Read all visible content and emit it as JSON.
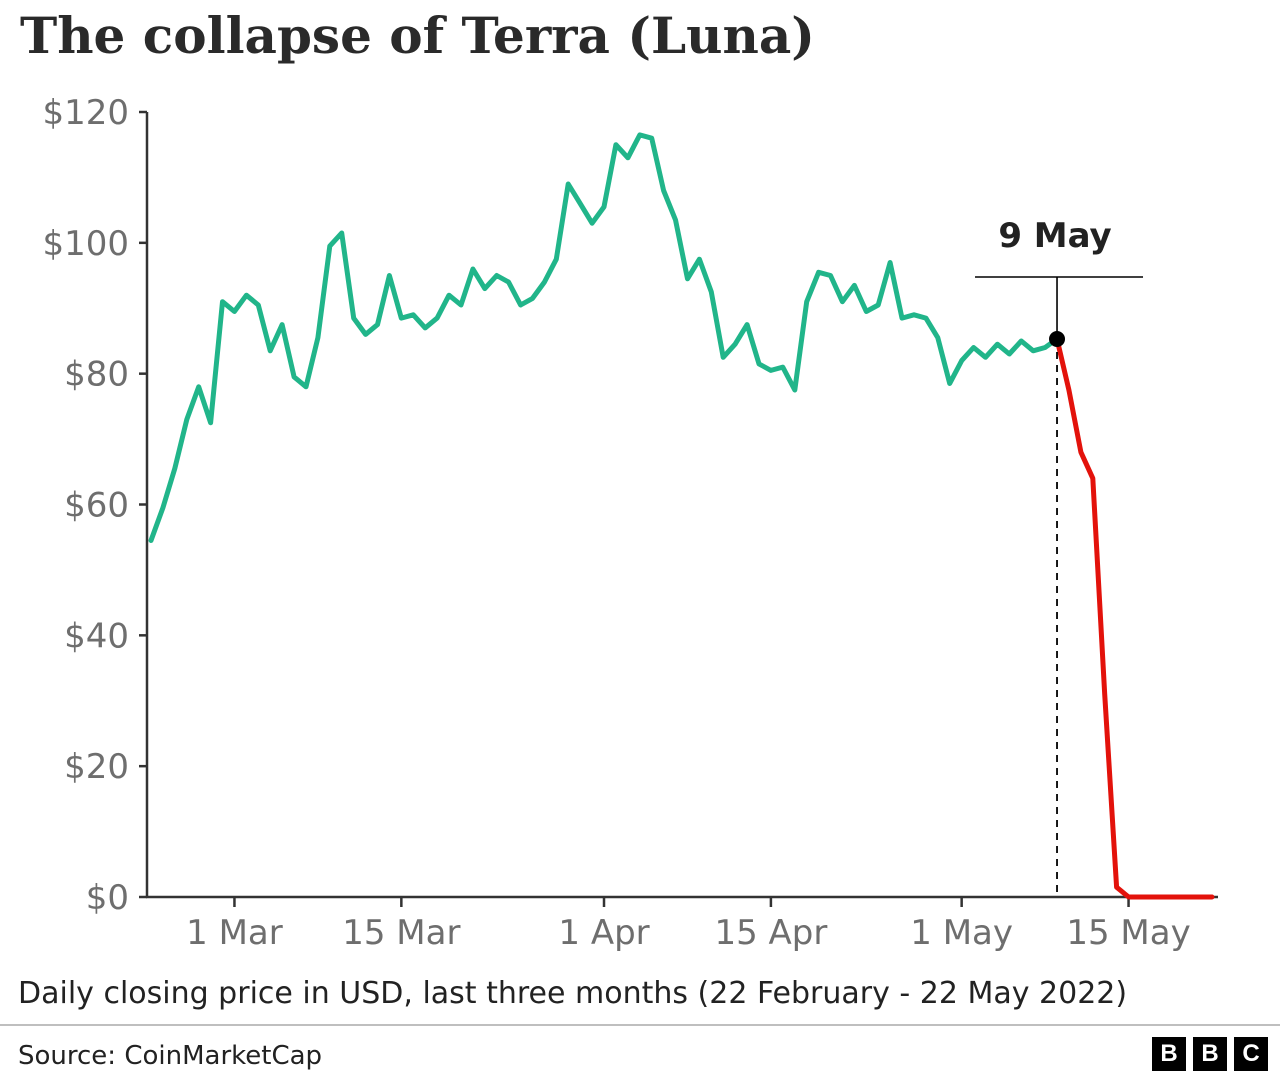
{
  "title": "The collapse of Terra (Luna)",
  "subtitle": "Daily closing price in USD, last three months (22 February - 22 May 2022)",
  "source": "Source: CoinMarketCap",
  "logo": {
    "letters": [
      "B",
      "B",
      "C"
    ]
  },
  "colors": {
    "before": "#21b58a",
    "after": "#e3120b",
    "axis": "#333333",
    "tick_text": "#6e6e6e",
    "marker": "#000000"
  },
  "chart_data": {
    "type": "line",
    "title": "The collapse of Terra (Luna)",
    "xlabel": "",
    "ylabel": "",
    "x_range": [
      "2022-02-22",
      "2022-05-22"
    ],
    "ylim": [
      0,
      120
    ],
    "grid": false,
    "y_ticks": [
      0,
      20,
      40,
      60,
      80,
      100,
      120
    ],
    "y_tick_labels": [
      "$0",
      "$20",
      "$40",
      "$60",
      "$80",
      "$100",
      "$120"
    ],
    "x_ticks": [
      "2022-03-01",
      "2022-03-15",
      "2022-04-01",
      "2022-04-15",
      "2022-05-01",
      "2022-05-15"
    ],
    "x_tick_labels": [
      "1 Mar",
      "15 Mar",
      "1 Apr",
      "15 Apr",
      "1 May",
      "15 May"
    ],
    "annotation": {
      "label": "9 May",
      "date": "2022-05-09",
      "value": 85.3
    },
    "series": [
      {
        "color": "#21b58a",
        "points": [
          [
            "2022-02-22",
            54.5
          ],
          [
            "2022-02-23",
            59.5
          ],
          [
            "2022-02-24",
            65.5
          ],
          [
            "2022-02-25",
            73.0
          ],
          [
            "2022-02-26",
            78.0
          ],
          [
            "2022-02-27",
            72.5
          ],
          [
            "2022-02-28",
            91.0
          ],
          [
            "2022-03-01",
            89.5
          ],
          [
            "2022-03-02",
            92.0
          ],
          [
            "2022-03-03",
            90.5
          ],
          [
            "2022-03-04",
            83.5
          ],
          [
            "2022-03-05",
            87.5
          ],
          [
            "2022-03-06",
            79.5
          ],
          [
            "2022-03-07",
            78.0
          ],
          [
            "2022-03-08",
            85.5
          ],
          [
            "2022-03-09",
            99.5
          ],
          [
            "2022-03-10",
            101.5
          ],
          [
            "2022-03-11",
            88.5
          ],
          [
            "2022-03-12",
            86.0
          ],
          [
            "2022-03-13",
            87.5
          ],
          [
            "2022-03-14",
            95.0
          ],
          [
            "2022-03-15",
            88.5
          ],
          [
            "2022-03-16",
            89.0
          ],
          [
            "2022-03-17",
            87.0
          ],
          [
            "2022-03-18",
            88.5
          ],
          [
            "2022-03-19",
            92.0
          ],
          [
            "2022-03-20",
            90.5
          ],
          [
            "2022-03-21",
            96.0
          ],
          [
            "2022-03-22",
            93.0
          ],
          [
            "2022-03-23",
            95.0
          ],
          [
            "2022-03-24",
            94.0
          ],
          [
            "2022-03-25",
            90.5
          ],
          [
            "2022-03-26",
            91.5
          ],
          [
            "2022-03-27",
            94.0
          ],
          [
            "2022-03-28",
            97.5
          ],
          [
            "2022-03-29",
            109.0
          ],
          [
            "2022-03-30",
            106.0
          ],
          [
            "2022-03-31",
            103.0
          ],
          [
            "2022-04-01",
            105.5
          ],
          [
            "2022-04-02",
            115.0
          ],
          [
            "2022-04-03",
            113.0
          ],
          [
            "2022-04-04",
            116.5
          ],
          [
            "2022-04-05",
            116.0
          ],
          [
            "2022-04-06",
            108.0
          ],
          [
            "2022-04-07",
            103.5
          ],
          [
            "2022-04-08",
            94.5
          ],
          [
            "2022-04-09",
            97.5
          ],
          [
            "2022-04-10",
            92.5
          ],
          [
            "2022-04-11",
            82.5
          ],
          [
            "2022-04-12",
            84.5
          ],
          [
            "2022-04-13",
            87.5
          ],
          [
            "2022-04-14",
            81.5
          ],
          [
            "2022-04-15",
            80.5
          ],
          [
            "2022-04-16",
            81.0
          ],
          [
            "2022-04-17",
            77.5
          ],
          [
            "2022-04-18",
            91.0
          ],
          [
            "2022-04-19",
            95.5
          ],
          [
            "2022-04-20",
            95.0
          ],
          [
            "2022-04-21",
            91.0
          ],
          [
            "2022-04-22",
            93.5
          ],
          [
            "2022-04-23",
            89.5
          ],
          [
            "2022-04-24",
            90.5
          ],
          [
            "2022-04-25",
            97.0
          ],
          [
            "2022-04-26",
            88.5
          ],
          [
            "2022-04-27",
            89.0
          ],
          [
            "2022-04-28",
            88.5
          ],
          [
            "2022-04-29",
            85.5
          ],
          [
            "2022-04-30",
            78.5
          ],
          [
            "2022-05-01",
            82.0
          ],
          [
            "2022-05-02",
            84.0
          ],
          [
            "2022-05-03",
            82.5
          ],
          [
            "2022-05-04",
            84.5
          ],
          [
            "2022-05-05",
            83.0
          ],
          [
            "2022-05-06",
            85.0
          ],
          [
            "2022-05-07",
            83.5
          ],
          [
            "2022-05-08",
            84.0
          ],
          [
            "2022-05-09",
            85.3
          ]
        ]
      },
      {
        "color": "#e3120b",
        "points": [
          [
            "2022-05-09",
            85.3
          ],
          [
            "2022-05-10",
            77.5
          ],
          [
            "2022-05-11",
            68.0
          ],
          [
            "2022-05-12",
            64.0
          ],
          [
            "2022-05-13",
            31.0
          ],
          [
            "2022-05-14",
            1.5
          ],
          [
            "2022-05-15",
            0.0
          ],
          [
            "2022-05-16",
            0.0
          ],
          [
            "2022-05-17",
            0.0
          ],
          [
            "2022-05-18",
            0.0
          ],
          [
            "2022-05-19",
            0.0
          ],
          [
            "2022-05-20",
            0.0
          ],
          [
            "2022-05-21",
            0.0
          ],
          [
            "2022-05-22",
            0.0
          ]
        ]
      }
    ]
  }
}
